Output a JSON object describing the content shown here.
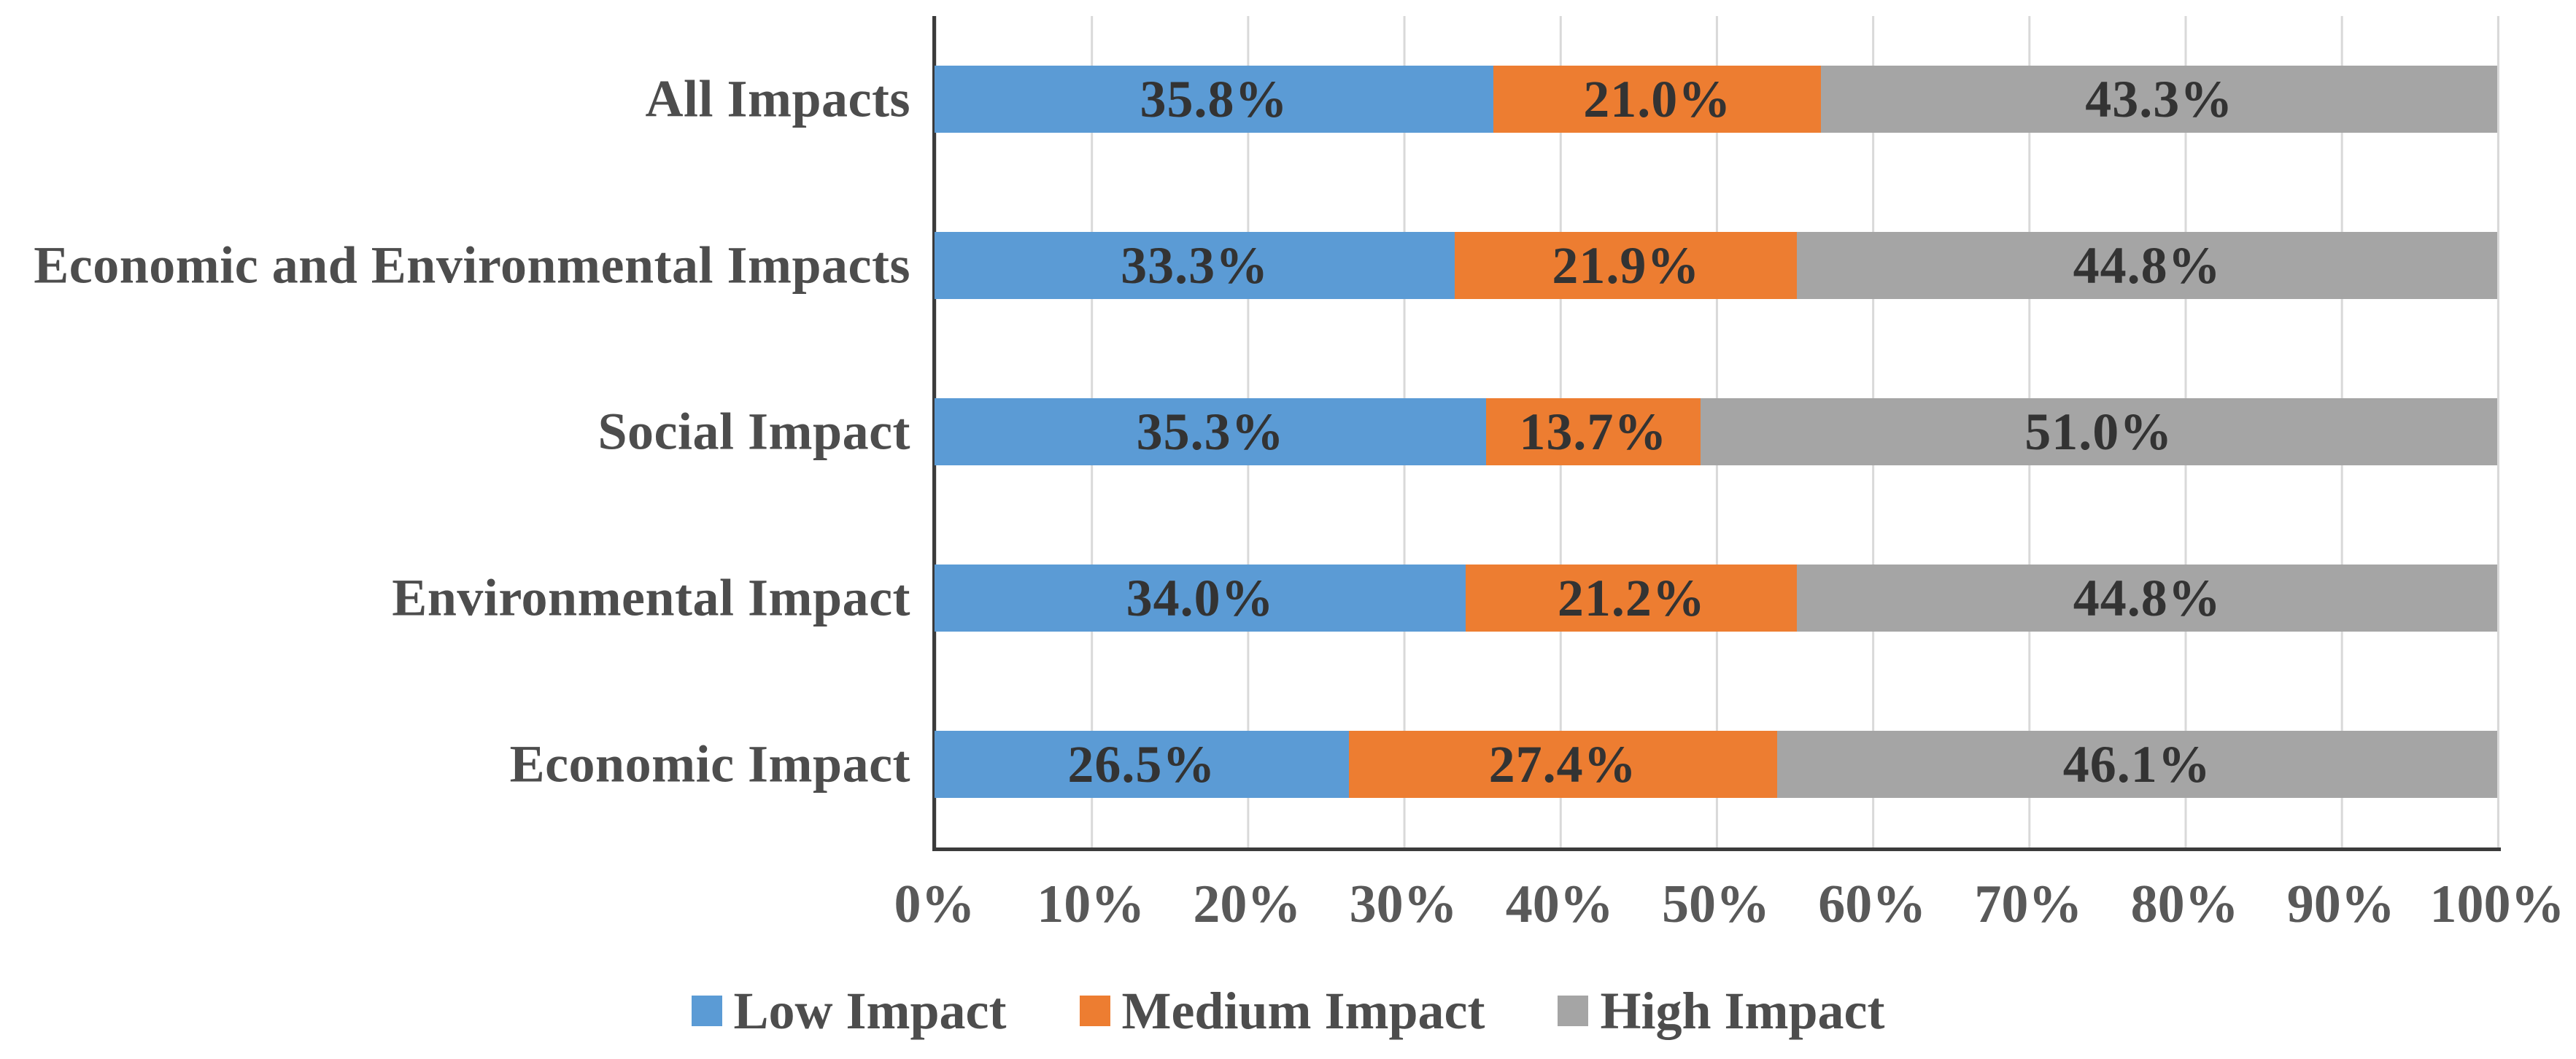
{
  "chart_data": {
    "type": "bar",
    "orientation": "horizontal",
    "stacked": true,
    "title": "",
    "xlabel": "",
    "ylabel": "",
    "categories": [
      "All Impacts",
      "Economic and Environmental Impacts",
      "Social Impact",
      "Environmental Impact",
      "Economic Impact"
    ],
    "series": [
      {
        "name": "Low Impact",
        "color": "#5B9BD5",
        "values": [
          35.8,
          33.3,
          35.3,
          34.0,
          26.5
        ]
      },
      {
        "name": "Medium Impact",
        "color": "#ED7D31",
        "values": [
          21.0,
          21.9,
          13.7,
          21.2,
          27.4
        ]
      },
      {
        "name": "High Impact",
        "color": "#A5A5A5",
        "values": [
          43.3,
          44.8,
          51.0,
          44.8,
          46.1
        ]
      }
    ],
    "data_labels": [
      [
        "35.8%",
        "21.0%",
        "43.3%"
      ],
      [
        "33.3%",
        "21.9%",
        "44.8%"
      ],
      [
        "35.3%",
        "13.7%",
        "51.0%"
      ],
      [
        "34.0%",
        "21.2%",
        "44.8%"
      ],
      [
        "26.5%",
        "27.4%",
        "46.1%"
      ]
    ],
    "x_ticks": [
      "0%",
      "10%",
      "20%",
      "30%",
      "40%",
      "50%",
      "60%",
      "70%",
      "80%",
      "90%",
      "100%"
    ],
    "xlim": [
      0,
      100
    ],
    "grid": "vertical",
    "legend_position": "bottom",
    "colors": {
      "gridline": "#D9D9D9",
      "axis_line": "#3B3B3B",
      "segment_label_text": "#333333",
      "category_text": "#4D4D4D",
      "tick_text": "#595959"
    }
  }
}
